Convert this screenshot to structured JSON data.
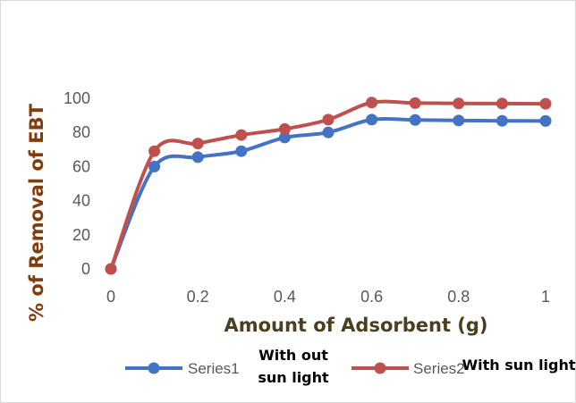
{
  "chart_data": {
    "type": "line",
    "title": "",
    "xlabel": "Amount of Adsorbent (g)",
    "ylabel": "% of Removal of EBT",
    "xlim": [
      0,
      1
    ],
    "ylim": [
      0,
      100
    ],
    "x_ticks": [
      "0",
      "0.2",
      "0.4",
      "0.6",
      "0.8",
      "1"
    ],
    "y_ticks": [
      "0",
      "20",
      "40",
      "60",
      "80",
      "100"
    ],
    "grid": false,
    "legend_position": "bottom",
    "x": [
      0,
      0.1,
      0.2,
      0.3,
      0.4,
      0.5,
      0.6,
      0.7,
      0.8,
      0.9,
      1.0
    ],
    "series": [
      {
        "name": "Series1",
        "color": "#4472c4",
        "values": [
          0,
          60,
          65.5,
          69,
          77,
          80,
          87.5,
          87.3,
          87,
          86.8,
          86.7
        ]
      },
      {
        "name": "Series2",
        "color": "#c0504d",
        "values": [
          0,
          69,
          73.5,
          78.5,
          82,
          87.5,
          97.5,
          97.2,
          97,
          96.9,
          96.8
        ]
      }
    ],
    "annotations": [
      "With out sun light",
      "With sun light"
    ]
  }
}
